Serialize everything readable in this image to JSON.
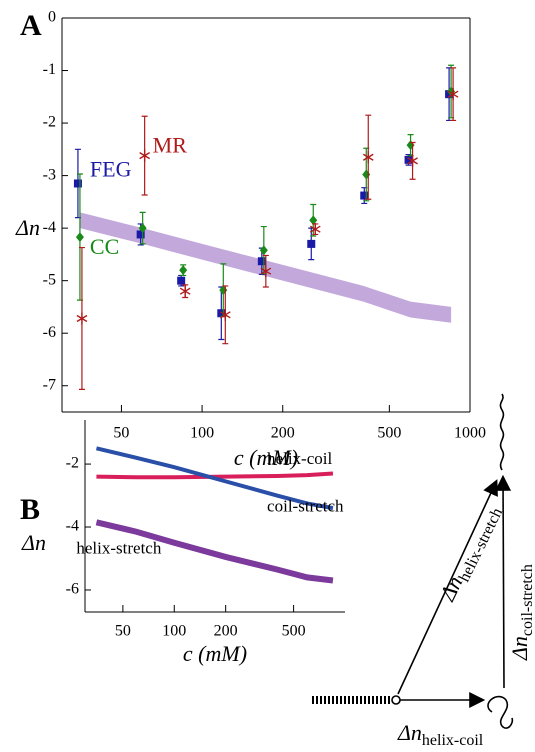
{
  "chart_data": [
    {
      "type": "errorbar",
      "panel_label": "A",
      "x_label": "c (mM)",
      "y_label": "Δn",
      "log_x": true,
      "xlim": [
        30,
        1000
      ],
      "xticks": [
        50,
        100,
        200,
        500,
        1000
      ],
      "ylim": [
        -7.5,
        0
      ],
      "yticks": [
        0,
        -1,
        -2,
        -3,
        -4,
        -5,
        -6,
        -7
      ],
      "x": [
        35,
        60,
        85,
        120,
        170,
        260,
        410,
        600,
        850
      ],
      "series": [
        {
          "name": "FEG",
          "color": "#1a1aa6",
          "marker": "square",
          "values": [
            -3.15,
            -4.12,
            -5.0,
            -5.62,
            -4.63,
            -4.3,
            -3.38,
            -2.7,
            -1.45
          ],
          "errors": [
            0.65,
            0.2,
            0.1,
            0.5,
            0.25,
            0.3,
            0.15,
            0.1,
            0.5
          ]
        },
        {
          "name": "CC",
          "color": "#1a8a1a",
          "marker": "diamond",
          "values": [
            -4.17,
            -4.0,
            -4.8,
            -5.18,
            -4.42,
            -3.85,
            -2.98,
            -2.42,
            -1.4
          ],
          "errors": [
            1.2,
            0.3,
            0.1,
            0.5,
            0.45,
            0.3,
            0.5,
            0.2,
            0.5
          ]
        },
        {
          "name": "MR",
          "color": "#b01a1a",
          "marker": "asterisk",
          "values": [
            -5.72,
            -2.62,
            -5.2,
            -5.65,
            -4.82,
            -4.02,
            -2.65,
            -2.72,
            -1.45
          ],
          "errors": [
            1.35,
            0.75,
            0.12,
            0.55,
            0.3,
            0.1,
            0.8,
            0.35,
            0.5
          ]
        }
      ],
      "band": {
        "color": "#c3a8dc",
        "x": [
          35,
          60,
          100,
          200,
          400,
          600,
          850
        ],
        "low": [
          -4.0,
          -4.3,
          -4.6,
          -5.0,
          -5.4,
          -5.7,
          -5.8
        ],
        "high": [
          -3.7,
          -4.0,
          -4.3,
          -4.7,
          -5.1,
          -5.4,
          -5.5
        ]
      }
    },
    {
      "type": "line",
      "panel_label": "B",
      "x_label": "c (mM)",
      "y_label": "Δn",
      "log_x": true,
      "xlim": [
        30,
        1000
      ],
      "xticks": [
        50,
        100,
        200,
        500
      ],
      "ylim": [
        -6.7,
        -0.6
      ],
      "yticks": [
        -2,
        -4,
        -6
      ],
      "x": [
        35,
        60,
        100,
        200,
        400,
        600,
        850
      ],
      "series": [
        {
          "name": "helix-coil",
          "color": "#d81e5b",
          "values": [
            -2.4,
            -2.42,
            -2.42,
            -2.4,
            -2.38,
            -2.35,
            -2.3
          ]
        },
        {
          "name": "coil-stretch",
          "color": "#2a4fa8",
          "values": [
            -1.5,
            -1.8,
            -2.1,
            -2.55,
            -3.0,
            -3.25,
            -3.4
          ]
        },
        {
          "name": "helix-stretch",
          "color": "#7b3a9c",
          "values": [
            -3.85,
            -4.15,
            -4.5,
            -4.95,
            -5.35,
            -5.6,
            -5.7
          ]
        }
      ]
    }
  ],
  "diagram": {
    "symbol": "Δn",
    "helix_stretch": "helix-stretch",
    "coil_stretch": "coil-stretch",
    "helix_coil": "helix-coil"
  }
}
